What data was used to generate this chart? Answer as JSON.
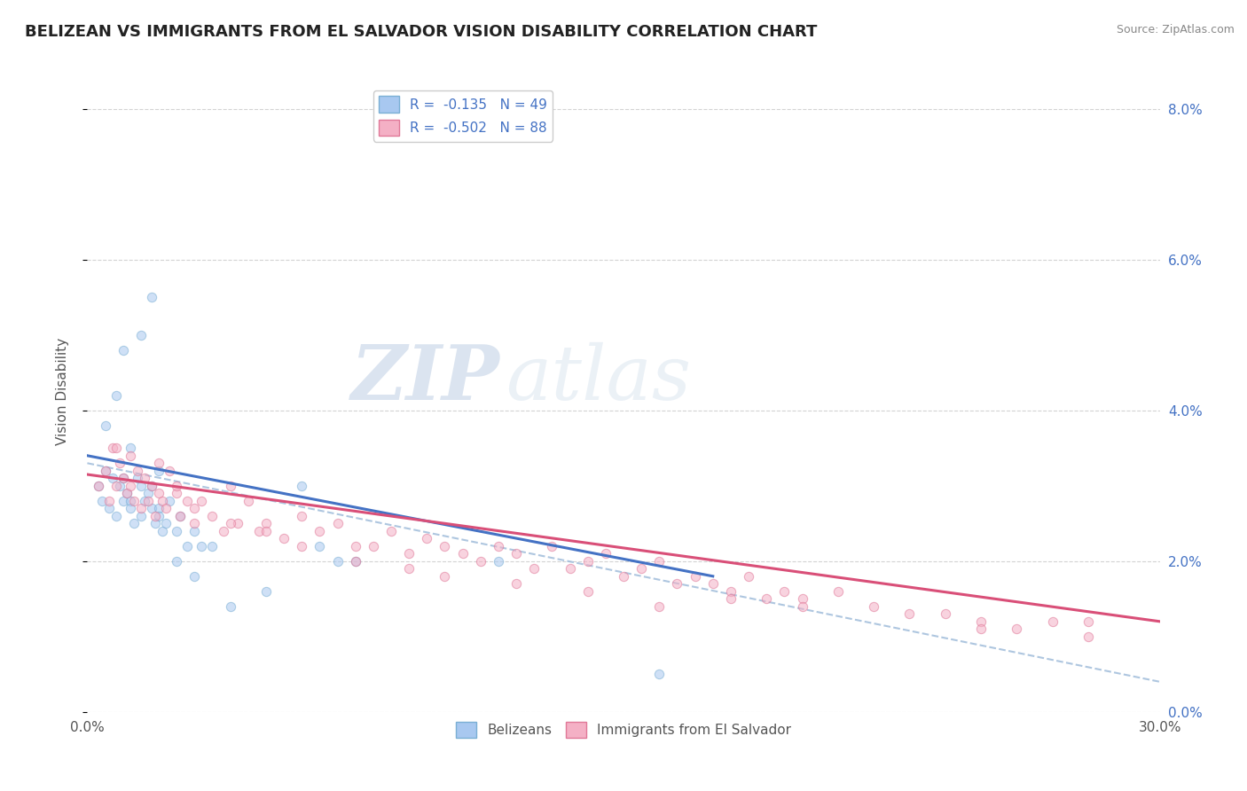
{
  "title": "BELIZEAN VS IMMIGRANTS FROM EL SALVADOR VISION DISABILITY CORRELATION CHART",
  "source": "Source: ZipAtlas.com",
  "ylabel_label": "Vision Disability",
  "xlim": [
    0.0,
    0.3
  ],
  "ylim": [
    0.0,
    0.085
  ],
  "x_ticks": [
    0.0,
    0.05,
    0.1,
    0.15,
    0.2,
    0.25,
    0.3
  ],
  "y_ticks": [
    0.0,
    0.02,
    0.04,
    0.06,
    0.08
  ],
  "y_tick_labels": [
    "0.0%",
    "2.0%",
    "4.0%",
    "6.0%",
    "8.0%"
  ],
  "watermark_zip": "ZIP",
  "watermark_atlas": "atlas",
  "background_color": "#ffffff",
  "grid_color": "#c8c8c8",
  "scatter_alpha": 0.55,
  "scatter_size": 55,
  "blue_scatter_x": [
    0.003,
    0.004,
    0.005,
    0.006,
    0.007,
    0.008,
    0.009,
    0.01,
    0.01,
    0.011,
    0.012,
    0.012,
    0.013,
    0.014,
    0.015,
    0.015,
    0.016,
    0.017,
    0.018,
    0.018,
    0.019,
    0.02,
    0.02,
    0.021,
    0.022,
    0.023,
    0.025,
    0.026,
    0.028,
    0.03,
    0.032,
    0.005,
    0.008,
    0.01,
    0.012,
    0.015,
    0.018,
    0.02,
    0.025,
    0.03,
    0.035,
    0.04,
    0.05,
    0.06,
    0.065,
    0.07,
    0.075,
    0.115,
    0.16
  ],
  "blue_scatter_y": [
    0.03,
    0.028,
    0.032,
    0.027,
    0.031,
    0.026,
    0.03,
    0.031,
    0.028,
    0.029,
    0.028,
    0.027,
    0.025,
    0.031,
    0.026,
    0.03,
    0.028,
    0.029,
    0.027,
    0.03,
    0.025,
    0.027,
    0.026,
    0.024,
    0.025,
    0.028,
    0.024,
    0.026,
    0.022,
    0.024,
    0.022,
    0.038,
    0.042,
    0.048,
    0.035,
    0.05,
    0.055,
    0.032,
    0.02,
    0.018,
    0.022,
    0.014,
    0.016,
    0.03,
    0.022,
    0.02,
    0.02,
    0.02,
    0.005
  ],
  "pink_scatter_x": [
    0.003,
    0.005,
    0.006,
    0.007,
    0.008,
    0.009,
    0.01,
    0.011,
    0.012,
    0.013,
    0.014,
    0.015,
    0.016,
    0.017,
    0.018,
    0.019,
    0.02,
    0.021,
    0.022,
    0.023,
    0.025,
    0.026,
    0.028,
    0.03,
    0.032,
    0.035,
    0.038,
    0.04,
    0.042,
    0.045,
    0.048,
    0.05,
    0.055,
    0.06,
    0.065,
    0.07,
    0.075,
    0.08,
    0.085,
    0.09,
    0.095,
    0.1,
    0.105,
    0.11,
    0.115,
    0.12,
    0.125,
    0.13,
    0.135,
    0.14,
    0.145,
    0.15,
    0.155,
    0.16,
    0.165,
    0.17,
    0.175,
    0.18,
    0.185,
    0.19,
    0.195,
    0.2,
    0.21,
    0.22,
    0.23,
    0.24,
    0.25,
    0.26,
    0.27,
    0.28,
    0.008,
    0.012,
    0.02,
    0.025,
    0.03,
    0.04,
    0.05,
    0.06,
    0.075,
    0.09,
    0.1,
    0.12,
    0.14,
    0.16,
    0.18,
    0.2,
    0.25,
    0.28
  ],
  "pink_scatter_y": [
    0.03,
    0.032,
    0.028,
    0.035,
    0.03,
    0.033,
    0.031,
    0.029,
    0.03,
    0.028,
    0.032,
    0.027,
    0.031,
    0.028,
    0.03,
    0.026,
    0.029,
    0.028,
    0.027,
    0.032,
    0.029,
    0.026,
    0.028,
    0.025,
    0.028,
    0.026,
    0.024,
    0.03,
    0.025,
    0.028,
    0.024,
    0.025,
    0.023,
    0.026,
    0.024,
    0.025,
    0.022,
    0.022,
    0.024,
    0.021,
    0.023,
    0.022,
    0.021,
    0.02,
    0.022,
    0.021,
    0.019,
    0.022,
    0.019,
    0.02,
    0.021,
    0.018,
    0.019,
    0.02,
    0.017,
    0.018,
    0.017,
    0.016,
    0.018,
    0.015,
    0.016,
    0.015,
    0.016,
    0.014,
    0.013,
    0.013,
    0.012,
    0.011,
    0.012,
    0.01,
    0.035,
    0.034,
    0.033,
    0.03,
    0.027,
    0.025,
    0.024,
    0.022,
    0.02,
    0.019,
    0.018,
    0.017,
    0.016,
    0.014,
    0.015,
    0.014,
    0.011,
    0.012
  ],
  "blue_line_x": [
    0.0,
    0.175
  ],
  "blue_line_y": [
    0.034,
    0.018
  ],
  "pink_line_x": [
    0.0,
    0.3
  ],
  "pink_line_y": [
    0.0315,
    0.012
  ],
  "blue_dashed_line_x": [
    0.0,
    0.3
  ],
  "blue_dashed_line_y": [
    0.033,
    0.004
  ]
}
